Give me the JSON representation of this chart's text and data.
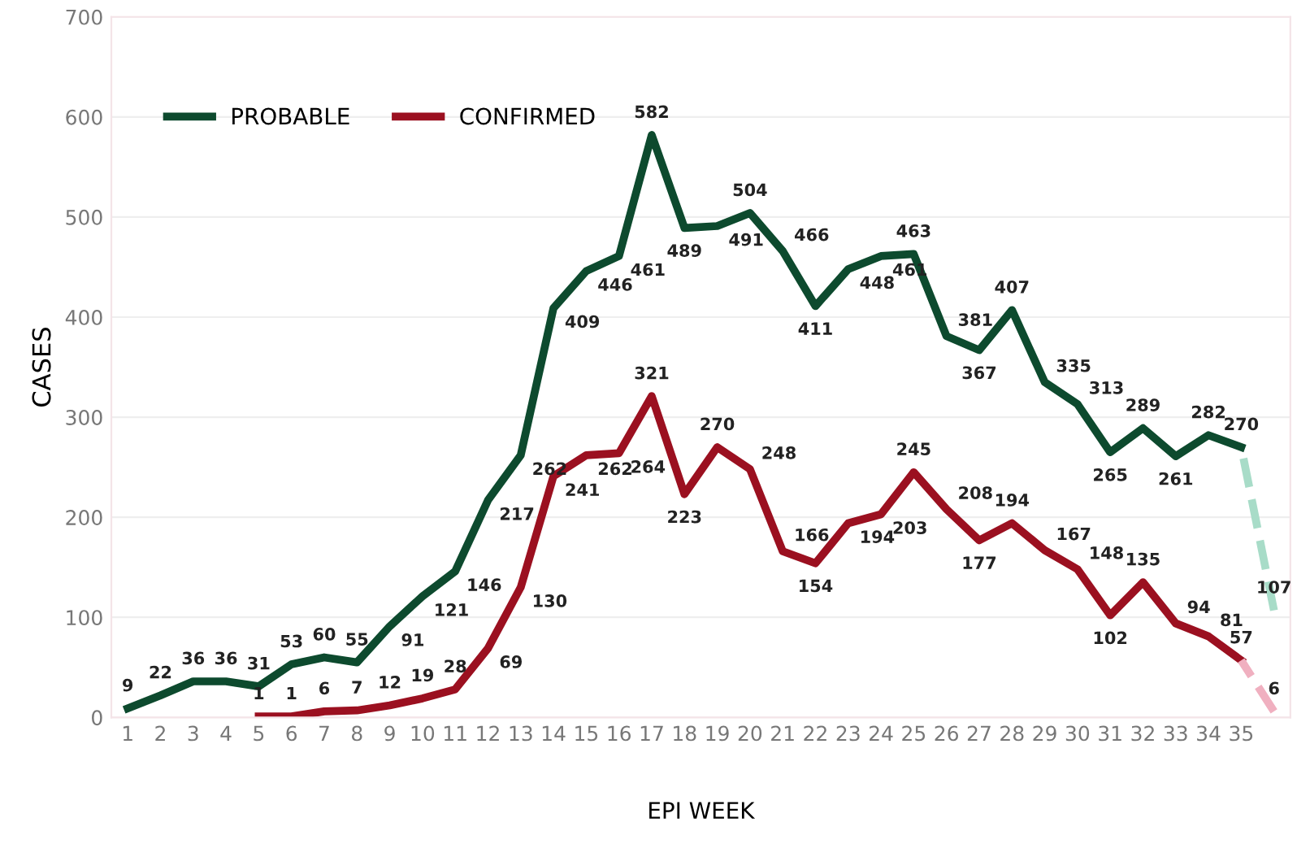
{
  "chart_data": {
    "type": "line",
    "xlabel": "EPI WEEK",
    "ylabel": "CASES",
    "categories": [
      "1",
      "2",
      "3",
      "4",
      "5",
      "6",
      "7",
      "8",
      "9",
      "10",
      "11",
      "12",
      "13",
      "14",
      "15",
      "16",
      "17",
      "18",
      "19",
      "20",
      "21",
      "22",
      "23",
      "24",
      "25",
      "26",
      "27",
      "28",
      "29",
      "30",
      "31",
      "32",
      "33",
      "34",
      "35",
      null
    ],
    "series": [
      {
        "name": "PROBABLE",
        "color": "#0d4a2e",
        "values": [
          9,
          22,
          36,
          36,
          31,
          53,
          60,
          55,
          91,
          121,
          146,
          217,
          262,
          409,
          446,
          461,
          582,
          489,
          491,
          504,
          466,
          411,
          448,
          461,
          463,
          381,
          367,
          407,
          335,
          313,
          265,
          289,
          261,
          282,
          270,
          null
        ]
      },
      {
        "name": "CONFIRMED",
        "color": "#9b1020",
        "values": [
          null,
          null,
          null,
          null,
          1,
          1,
          6,
          7,
          12,
          19,
          28,
          69,
          130,
          241,
          262,
          264,
          321,
          223,
          270,
          248,
          166,
          154,
          194,
          203,
          245,
          208,
          177,
          194,
          167,
          148,
          102,
          135,
          94,
          81,
          57,
          null
        ]
      },
      {
        "color": "#a8dcc8",
        "line_style": "dashed",
        "values": [
          null,
          null,
          null,
          null,
          null,
          null,
          null,
          null,
          null,
          null,
          null,
          null,
          null,
          null,
          null,
          null,
          null,
          null,
          null,
          null,
          null,
          null,
          null,
          null,
          null,
          null,
          null,
          null,
          null,
          null,
          null,
          null,
          null,
          null,
          270,
          107
        ],
        "value_labels": [
          null,
          null,
          null,
          null,
          null,
          null,
          null,
          null,
          null,
          null,
          null,
          null,
          null,
          null,
          null,
          null,
          null,
          null,
          null,
          null,
          null,
          null,
          null,
          null,
          null,
          null,
          null,
          null,
          null,
          null,
          null,
          null,
          null,
          null,
          null,
          "107"
        ]
      },
      {
        "color": "#f0b0c0",
        "line_style": "dashed",
        "values": [
          null,
          null,
          null,
          null,
          null,
          null,
          null,
          null,
          null,
          null,
          null,
          null,
          null,
          null,
          null,
          null,
          null,
          null,
          null,
          null,
          null,
          null,
          null,
          null,
          null,
          null,
          null,
          null,
          null,
          null,
          null,
          null,
          null,
          null,
          57,
          6
        ],
        "value_labels": [
          null,
          null,
          null,
          null,
          null,
          null,
          null,
          null,
          null,
          null,
          null,
          null,
          null,
          null,
          null,
          null,
          null,
          null,
          null,
          null,
          null,
          null,
          null,
          null,
          null,
          null,
          null,
          null,
          null,
          null,
          null,
          null,
          null,
          null,
          null,
          "6"
        ]
      }
    ],
    "ylim": [
      0,
      700
    ],
    "yticks": [
      0,
      100,
      200,
      300,
      400,
      500,
      600,
      700
    ],
    "grid": "y",
    "legend": "top left",
    "data_labels": true,
    "line_style": "solid"
  }
}
